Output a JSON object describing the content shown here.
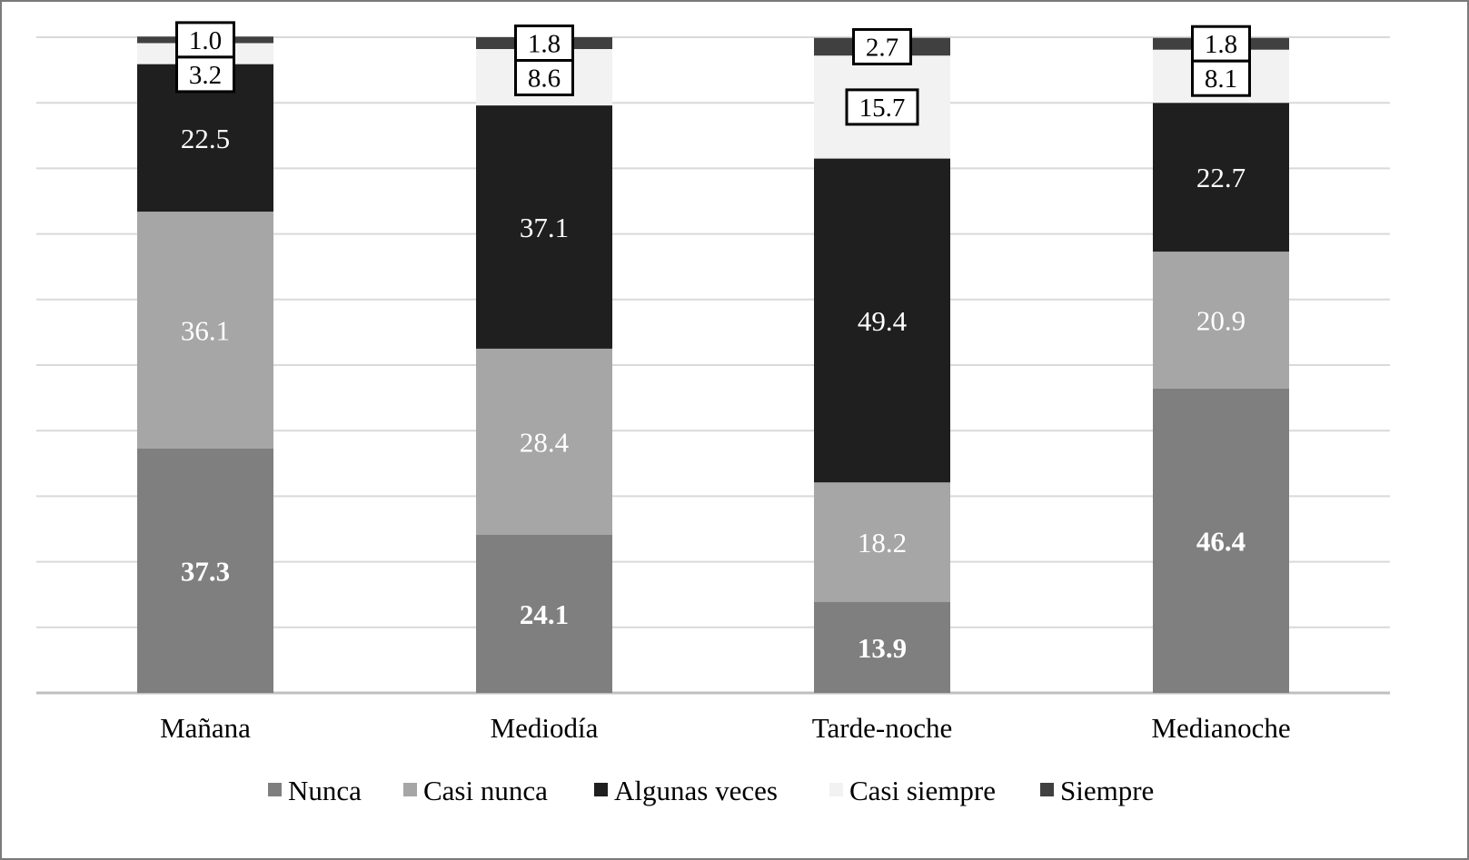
{
  "chart_data": {
    "type": "bar",
    "stacked": true,
    "title": "",
    "xlabel": "",
    "ylabel": "",
    "ylim": [
      0,
      100
    ],
    "grid": true,
    "legend_position": "bottom",
    "categories": [
      "Mañana",
      "Mediodía",
      "Tarde-noche",
      "Medianoche"
    ],
    "series": [
      {
        "name": "Nunca",
        "values": [
          37.3,
          24.1,
          13.9,
          46.4
        ],
        "color": "#7f7f7f",
        "label_color": "#ffffff",
        "label_bold": true,
        "label_boxed": false
      },
      {
        "name": "Casi nunca",
        "values": [
          36.1,
          28.4,
          18.2,
          20.9
        ],
        "color": "#a6a6a6",
        "label_color": "#ffffff",
        "label_bold": false,
        "label_boxed": false
      },
      {
        "name": "Algunas veces",
        "values": [
          22.5,
          37.1,
          49.4,
          22.7
        ],
        "color": "#1f1f1f",
        "label_color": "#ffffff",
        "label_bold": false,
        "label_boxed": false
      },
      {
        "name": "Casi siempre",
        "values": [
          3.2,
          8.6,
          15.7,
          8.1
        ],
        "color": "#f2f2f2",
        "label_color": "#000000",
        "label_bold": false,
        "label_boxed": true
      },
      {
        "name": "Siempre",
        "values": [
          1.0,
          1.8,
          2.7,
          1.8
        ],
        "color": "#404040",
        "label_color": "#000000",
        "label_bold": false,
        "label_boxed": true
      }
    ],
    "colors": {
      "gridline": "#d9d9d9",
      "axis": "#bfbfbf",
      "frame": "#7a7a7a",
      "text": "#000000"
    }
  }
}
